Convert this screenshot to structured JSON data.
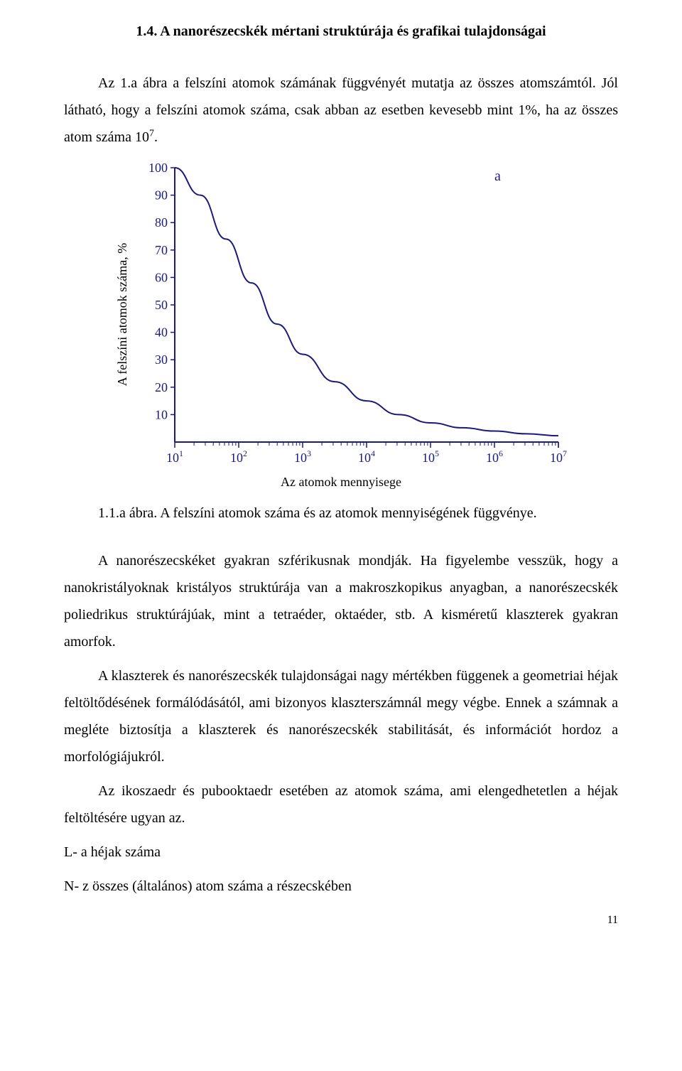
{
  "section": {
    "title": "1.4. A nanorészecskék mértani struktúrája és grafikai tulajdonságai"
  },
  "intro": {
    "p1_a": "Az 1.a ábra a felszíni atomok számának függvényét mutatja az összes atomszámtól. Jól látható, hogy a felszíni atomok száma, csak abban az esetben kevesebb mint 1%, ha az összes atom száma 10",
    "p1_sup": "7",
    "p1_b": "."
  },
  "chart": {
    "type": "line",
    "y_axis_label": "A felszíni atomok száma, %",
    "x_axis_label": "Az atomok mennyisege",
    "corner_label": "a",
    "y_ticks": [
      "10",
      "20",
      "30",
      "40",
      "50",
      "60",
      "70",
      "80",
      "90",
      "100"
    ],
    "x_ticks_base": [
      "10",
      "10",
      "10",
      "10",
      "10",
      "10",
      "10"
    ],
    "x_ticks_exp": [
      "1",
      "2",
      "3",
      "4",
      "5",
      "6",
      "7"
    ],
    "background_color": "#ffffff",
    "axis_color": "#1a1a7a",
    "line_color": "#1a1a7a",
    "tick_font_size": 18,
    "line_width": 2,
    "curve_points": [
      [
        0,
        100
      ],
      [
        0.4,
        90
      ],
      [
        0.8,
        74
      ],
      [
        1.2,
        58
      ],
      [
        1.6,
        43
      ],
      [
        2.0,
        32
      ],
      [
        2.5,
        22
      ],
      [
        3.0,
        15
      ],
      [
        3.5,
        10
      ],
      [
        4.0,
        7
      ],
      [
        4.5,
        5.2
      ],
      [
        5.0,
        4
      ],
      [
        5.5,
        3
      ],
      [
        6.0,
        2.3
      ]
    ],
    "plot": {
      "x_min": 0,
      "x_max": 6,
      "y_min": 0,
      "y_max": 100
    }
  },
  "figure_caption": "1.1.a ábra. A felszíni atomok száma és az atomok mennyiségének függvénye.",
  "body": {
    "p2": "A nanorészecskéket gyakran szférikusnak mondják. Ha figyelembe vesszük, hogy a nanokristályoknak kristályos struktúrája van a makroszkopikus anyagban, a nanorészecskék poliedrikus struktúrájúak, mint a tetraéder, oktaéder, stb. A kisméretű klaszterek gyakran amorfok.",
    "p3": "A klaszterek és nanorészecskék tulajdonságai nagy mértékben függenek a geometriai héjak feltöltődésének formálódásától, ami bizonyos klaszterszámnál megy végbe. Ennek a számnak a megléte biztosítja a klaszterek és nanorészecskék stabilitását, és információt hordoz a morfológiájukról.",
    "p4": "Az ikoszaedr és pubooktaedr esetében az atomok száma, ami elengedhetetlen a héjak feltöltésére ugyan az.",
    "l1": "L- a héjak száma",
    "l2": "N- z összes (általános) atom száma a részecskében"
  },
  "page_number": "11"
}
